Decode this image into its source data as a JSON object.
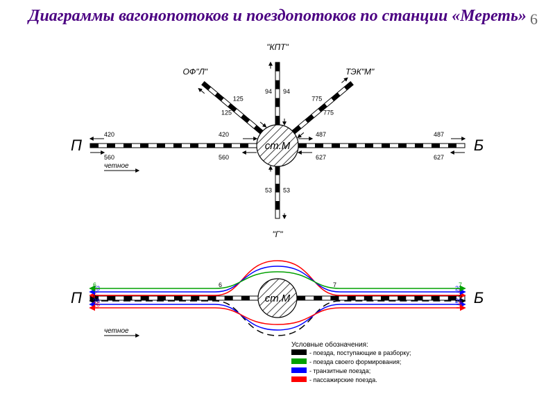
{
  "title": "Диаграммы вагонопотоков и поездопотоков по станции «Мереть»",
  "pageNumber": "6",
  "title_color": "#4b0082",
  "title_fontsize": 24,
  "pagenum_color": "#666666",
  "background": "#ffffff",
  "colors": {
    "black": "#000000",
    "green": "#00a000",
    "blue": "#0000ff",
    "red": "#ff0000",
    "hatch": "#404040"
  },
  "diagramTop": {
    "center_label": "ст.М",
    "left_letter": "П",
    "right_letter": "Б",
    "even_label": "четное",
    "branches": {
      "OF_L": {
        "label": "ОФ\"Л\"",
        "val1": "125",
        "val2": "125"
      },
      "KPT": {
        "label": "\"КПТ\"",
        "val1": "94",
        "val2": "94"
      },
      "TEK_M": {
        "label": "ТЭК\"М\"",
        "val1": "775",
        "val2": "775"
      },
      "G": {
        "label": "\"Г\"",
        "val1": "53",
        "val2": "53"
      }
    },
    "main": {
      "left_top": "420",
      "left_bot": "560",
      "mid_left_top": "420",
      "mid_left_bot": "560",
      "mid_right_top": "487",
      "mid_right_bot": "627",
      "right_top": "487",
      "right_bot": "627"
    }
  },
  "diagramBottom": {
    "center_label": "ст.М",
    "left_letter": "П",
    "right_letter": "Б",
    "even_label": "четное",
    "lines": [
      {
        "color": "#ff0000",
        "left": "5",
        "midL": "",
        "midR": "",
        "right": "5"
      },
      {
        "color": "#0000ff",
        "left": "23",
        "midL": "",
        "midR": "",
        "right": "23"
      },
      {
        "color": "#00a000",
        "left": "6",
        "midL": "6",
        "midR": "7",
        "right": "7"
      },
      {
        "color": "#000000",
        "left": "8",
        "midL": "",
        "midR": "",
        "right": "9",
        "dashed": true
      },
      {
        "color": "#0000ff",
        "left": "26",
        "midL": "",
        "midR": "",
        "right": "26"
      },
      {
        "color": "#ff0000",
        "left": "26",
        "midL": "",
        "midR": "",
        "right": "5"
      }
    ]
  },
  "legend": {
    "title": "Условные обозначения:",
    "items": [
      {
        "color": "#000000",
        "text": "- поезда, поступающие в разборку;"
      },
      {
        "color": "#00a000",
        "text": "- поезда своего формирования;"
      },
      {
        "color": "#0000ff",
        "text": "- транзитные поезда;"
      },
      {
        "color": "#ff0000",
        "text": "- пассажирские поезда."
      }
    ]
  }
}
